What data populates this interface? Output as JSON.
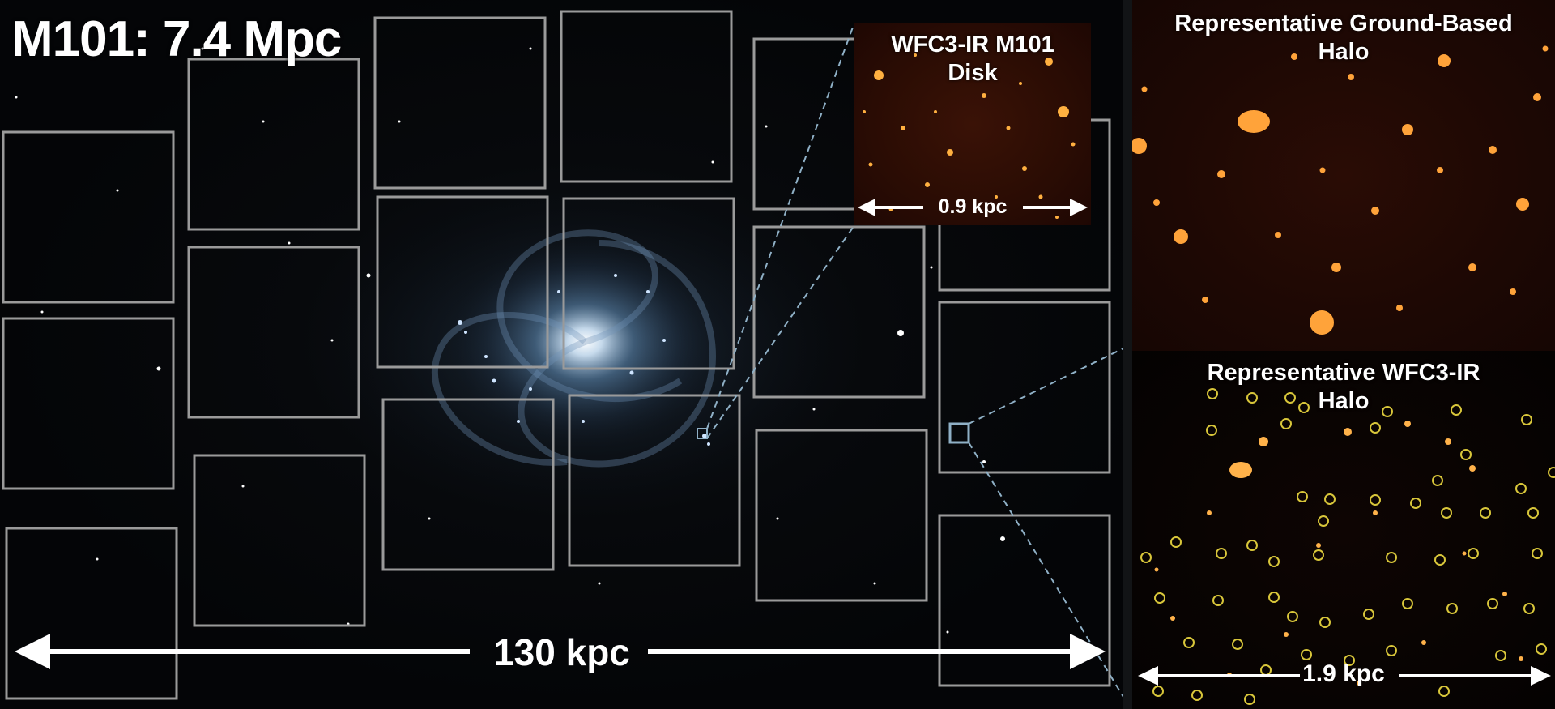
{
  "title": "M101: 7.4 Mpc",
  "insets": {
    "disk": {
      "label": "WFC3-IR M101\nDisk",
      "scale": "0.9 kpc"
    },
    "ground_halo": {
      "label": "Representative Ground-Based\nHalo"
    },
    "wfc3_halo": {
      "label": "Representative WFC3-IR\nHalo",
      "scale": "1.9 kpc"
    }
  },
  "main_scale": "130 kpc",
  "colors": {
    "field_outline": "#9a9a9a",
    "leader_line": "#8fb0c6",
    "circle_marker": "#d8c63a",
    "arrow": "#ffffff"
  }
}
